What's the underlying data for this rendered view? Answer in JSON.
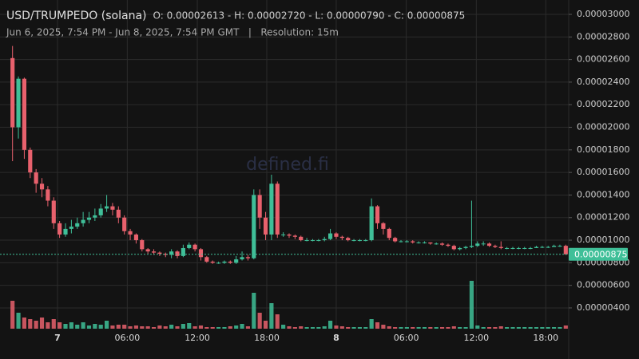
{
  "chart_data": {
    "type": "candlestick",
    "title": "USD/TRUMPEDO (solana)",
    "ohlc_text": "O: 0.00002613 - H: 0.00002720 - L: 0.00000790 - C: 0.00000875",
    "subtitle": "Jun 6, 2025, 7:54 PM - Jun 8, 2025, 7:54 PM GMT   |   Resolution: 15m",
    "watermark": "defined.fi",
    "up_color": "#3fbf98",
    "down_color": "#e8616d",
    "grid": true,
    "xlim": [
      0,
      95
    ],
    "xticks": [
      {
        "value": 8.14,
        "label": "7"
      },
      {
        "value": 20.0,
        "label": "06:00"
      },
      {
        "value": 31.9,
        "label": "12:00"
      },
      {
        "value": 43.7,
        "label": "18:00"
      },
      {
        "value": 55.5,
        "label": "8"
      },
      {
        "value": 67.4,
        "label": "06:00"
      },
      {
        "value": 79.3,
        "label": "12:00"
      },
      {
        "value": 91.1,
        "label": "18:00"
      }
    ],
    "ylim": [
      2.16e-06,
      3.092e-05
    ],
    "yticks": [
      {
        "value": 4e-06,
        "label": "0.00000400"
      },
      {
        "value": 6e-06,
        "label": "0.00000600"
      },
      {
        "value": 8e-06,
        "label": "0.00000800"
      },
      {
        "value": 1e-05,
        "label": "0.00001000"
      },
      {
        "value": 1.2e-05,
        "label": "0.00001200"
      },
      {
        "value": 1.4e-05,
        "label": "0.00001400"
      },
      {
        "value": 1.6e-05,
        "label": "0.00001600"
      },
      {
        "value": 1.8e-05,
        "label": "0.00001800"
      },
      {
        "value": 2e-05,
        "label": "0.00002000"
      },
      {
        "value": 2.2e-05,
        "label": "0.00002200"
      },
      {
        "value": 2.4e-05,
        "label": "0.00002400"
      },
      {
        "value": 2.6e-05,
        "label": "0.00002600"
      },
      {
        "value": 2.8e-05,
        "label": "0.00002800"
      },
      {
        "value": 3e-05,
        "label": "0.00003000"
      }
    ],
    "last_price": {
      "value": 8.75e-06,
      "label": "0.00000875"
    },
    "open": [
      2.613e-05,
      2e-05,
      2.43e-05,
      1.8e-05,
      1.6e-05,
      1.5e-05,
      1.45e-05,
      1.35e-05,
      1.15e-05,
      1.05e-05,
      1.1e-05,
      1.12e-05,
      1.15e-05,
      1.18e-05,
      1.2e-05,
      1.22e-05,
      1.28e-05,
      1.3e-05,
      1.27e-05,
      1.2e-05,
      1.08e-05,
      1.05e-05,
      1e-05,
      9.2e-06,
      9e-06,
      8.9e-06,
      8.8e-06,
      8.7e-06,
      9e-06,
      8.6e-06,
      9.3e-06,
      9.6e-06,
      9.2e-06,
      8.5e-06,
      8.1e-06,
      8e-06,
      8e-06,
      8.1e-06,
      8e-06,
      8.3e-06,
      8.5e-06,
      8.4e-06,
      1.4e-05,
      1.2e-05,
      1.05e-05,
      1.5e-05,
      1.05e-05,
      1.05e-05,
      1.04e-05,
      1.03e-05,
      1e-05,
      1e-05,
      1e-05,
      1e-05,
      1.01e-05,
      1.06e-05,
      1.03e-05,
      1.02e-05,
      1e-05,
      1e-05,
      1e-05,
      1e-05,
      1.3e-05,
      1.15e-05,
      1.1e-05,
      1.02e-05,
      9.9e-06,
      9.9e-06,
      9.9e-06,
      9.8e-06,
      9.8e-06,
      9.8e-06,
      9.7e-06,
      9.7e-06,
      9.6e-06,
      9.5e-06,
      9.2e-06,
      9.3e-06,
      9.4e-06,
      9.5e-06,
      9.7e-06,
      9.7e-06,
      9.5e-06,
      9.4e-06,
      9.3e-06,
      9.3e-06,
      9.3e-06,
      9.3e-06,
      9.3e-06,
      9.3e-06,
      9.4e-06,
      9.4e-06,
      9.4e-06,
      9.5e-06,
      9.5e-06
    ],
    "high": [
      2.72e-05,
      2.45e-05,
      2.44e-05,
      1.82e-05,
      1.63e-05,
      1.55e-05,
      1.48e-05,
      1.38e-05,
      1.17e-05,
      1.15e-05,
      1.18e-05,
      1.2e-05,
      1.25e-05,
      1.25e-05,
      1.28e-05,
      1.32e-05,
      1.4e-05,
      1.33e-05,
      1.3e-05,
      1.22e-05,
      1.1e-05,
      1.06e-05,
      1.01e-05,
      9.3e-06,
      9.2e-06,
      9e-06,
      8.9e-06,
      9.2e-06,
      9.1e-06,
      9.6e-06,
      9.8e-06,
      9.7e-06,
      9.3e-06,
      8.6e-06,
      8.2e-06,
      8.1e-06,
      8.2e-06,
      8.2e-06,
      8.6e-06,
      9e-06,
      8.7e-06,
      1.45e-05,
      1.45e-05,
      1.25e-05,
      1.58e-05,
      1.52e-05,
      1.07e-05,
      1.06e-05,
      1.05e-05,
      1.04e-05,
      1.02e-05,
      1.01e-05,
      1.01e-05,
      1.03e-05,
      1.1e-05,
      1.07e-05,
      1.04e-05,
      1.03e-05,
      1.01e-05,
      1.01e-05,
      1.01e-05,
      1.37e-05,
      1.31e-05,
      1.16e-05,
      1.11e-05,
      1.03e-05,
      1e-05,
      1e-05,
      1e-05,
      9.9e-06,
      9.9e-06,
      9.8e-06,
      9.8e-06,
      9.8e-06,
      9.7e-06,
      9.6e-06,
      9.4e-06,
      9.5e-06,
      1.35e-05,
      9.9e-06,
      9.9e-06,
      9.8e-06,
      9.6e-06,
      9.9e-06,
      9.4e-06,
      9.4e-06,
      9.4e-06,
      9.4e-06,
      9.4e-06,
      9.5e-06,
      9.5e-06,
      9.5e-06,
      9.6e-06,
      9.6e-06,
      9.6e-06
    ],
    "low": [
      1.7e-05,
      1.9e-05,
      1.72e-05,
      1.55e-05,
      1.42e-05,
      1.38e-05,
      1.3e-05,
      1.1e-05,
      1.02e-05,
      1.03e-05,
      1.06e-05,
      1.1e-05,
      1.12e-05,
      1.15e-05,
      1.17e-05,
      1.2e-05,
      1.25e-05,
      1.22e-05,
      1.15e-05,
      1.05e-05,
      1e-05,
      9.7e-06,
      9e-06,
      8.8e-06,
      8.7e-06,
      8.6e-06,
      8.5e-06,
      8.4e-06,
      8.4e-06,
      8.5e-06,
      9.2e-06,
      9e-06,
      8.2e-06,
      8e-06,
      7.9e-06,
      7.9e-06,
      7.9e-06,
      7.9e-06,
      7.9e-06,
      8.2e-06,
      8.2e-06,
      8.3e-06,
      1.1e-05,
      1e-05,
      1e-05,
      1.02e-05,
      1.03e-05,
      1.02e-05,
      1.01e-05,
      9.9e-06,
      9.9e-06,
      9.9e-06,
      9.9e-06,
      9.9e-06,
      1e-05,
      1.01e-05,
      1e-05,
      9.9e-06,
      9.9e-06,
      9.9e-06,
      9.9e-06,
      9.9e-06,
      1.1e-05,
      1.05e-05,
      1e-05,
      9.8e-06,
      9.8e-06,
      9.8e-06,
      9.7e-06,
      9.7e-06,
      9.7e-06,
      9.6e-06,
      9.6e-06,
      9.5e-06,
      9.4e-06,
      9.1e-06,
      9.1e-06,
      9.2e-06,
      9.3e-06,
      9.4e-06,
      9.5e-06,
      9.4e-06,
      9.3e-06,
      9.2e-06,
      9.2e-06,
      9.2e-06,
      9.2e-06,
      9.2e-06,
      9.2e-06,
      9.3e-06,
      9.3e-06,
      9.3e-06,
      9.4e-06,
      9.4e-06,
      8.7e-06
    ],
    "close": [
      2e-05,
      2.43e-05,
      1.8e-05,
      1.6e-05,
      1.5e-05,
      1.45e-05,
      1.35e-05,
      1.15e-05,
      1.05e-05,
      1.1e-05,
      1.12e-05,
      1.15e-05,
      1.18e-05,
      1.2e-05,
      1.22e-05,
      1.28e-05,
      1.3e-05,
      1.27e-05,
      1.2e-05,
      1.08e-05,
      1.05e-05,
      1e-05,
      9.2e-06,
      9e-06,
      8.9e-06,
      8.8e-06,
      8.7e-06,
      9e-06,
      8.6e-06,
      9.3e-06,
      9.6e-06,
      9.2e-06,
      8.5e-06,
      8.1e-06,
      8e-06,
      8e-06,
      8.1e-06,
      8e-06,
      8.3e-06,
      8.5e-06,
      8.4e-06,
      1.4e-05,
      1.2e-05,
      1.05e-05,
      1.5e-05,
      1.05e-05,
      1.05e-05,
      1.04e-05,
      1.03e-05,
      1e-05,
      1e-05,
      1e-05,
      1e-05,
      1.01e-05,
      1.06e-05,
      1.03e-05,
      1.02e-05,
      1e-05,
      1e-05,
      1e-05,
      1e-05,
      1.3e-05,
      1.15e-05,
      1.1e-05,
      1.02e-05,
      9.9e-06,
      9.9e-06,
      9.9e-06,
      9.8e-06,
      9.8e-06,
      9.8e-06,
      9.7e-06,
      9.7e-06,
      9.6e-06,
      9.5e-06,
      9.2e-06,
      9.3e-06,
      9.4e-06,
      9.5e-06,
      9.7e-06,
      9.7e-06,
      9.5e-06,
      9.4e-06,
      9.3e-06,
      9.3e-06,
      9.3e-06,
      9.3e-06,
      9.3e-06,
      9.3e-06,
      9.4e-06,
      9.4e-06,
      9.4e-06,
      9.5e-06,
      9.5e-06,
      8.75e-06
    ],
    "volume": [
      35,
      20,
      14,
      12,
      10,
      14,
      8,
      12,
      8,
      6,
      8,
      5,
      8,
      4,
      6,
      5,
      10,
      4,
      5,
      5,
      3,
      4,
      3,
      3,
      2,
      4,
      3,
      5,
      3,
      6,
      7,
      3,
      4,
      2,
      2,
      2,
      2,
      3,
      4,
      6,
      3,
      45,
      20,
      10,
      32,
      18,
      5,
      3,
      2,
      3,
      2,
      2,
      2,
      3,
      10,
      4,
      3,
      2,
      2,
      2,
      2,
      12,
      8,
      5,
      3,
      2,
      2,
      2,
      2,
      2,
      2,
      2,
      2,
      2,
      2,
      3,
      2,
      2,
      60,
      4,
      2,
      2,
      2,
      3,
      2,
      2,
      2,
      2,
      2,
      2,
      2,
      2,
      2,
      2,
      4
    ]
  }
}
